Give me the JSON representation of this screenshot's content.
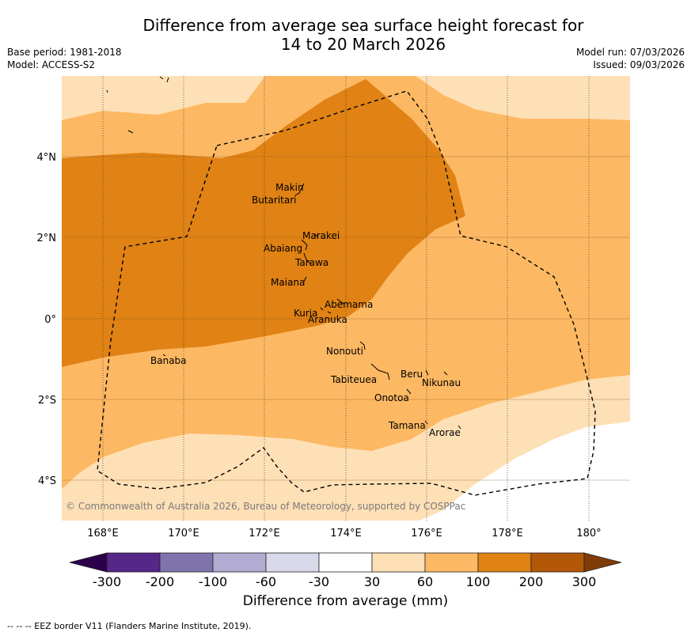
{
  "header": {
    "title_line1": "Difference from average sea surface height forecast for",
    "title_line2": "14 to 20 March 2026",
    "base_period": "Base period: 1981-2018",
    "model": "Model: ACCESS-S2",
    "model_run": "Model run: 07/03/2026",
    "issued": "Issued: 09/03/2026"
  },
  "map": {
    "lat_labels": [
      "4°N",
      "2°N",
      "0°",
      "2°S",
      "4°S"
    ],
    "lon_labels": [
      "168°E",
      "170°E",
      "172°E",
      "174°E",
      "176°E",
      "178°E",
      "180°"
    ],
    "copyright": "© Commonwealth of Australia 2026, Bureau of Meteorology, supported by COSPPac",
    "islands": [
      {
        "name": "Makin"
      },
      {
        "name": "Butaritari"
      },
      {
        "name": "Marakei"
      },
      {
        "name": "Abaiang"
      },
      {
        "name": "Tarawa"
      },
      {
        "name": "Maiana"
      },
      {
        "name": "Abemama"
      },
      {
        "name": "Kuria"
      },
      {
        "name": "Aranuka"
      },
      {
        "name": "Nonouti"
      },
      {
        "name": "Banaba"
      },
      {
        "name": "Tabiteuea"
      },
      {
        "name": "Beru"
      },
      {
        "name": "Nikunau"
      },
      {
        "name": "Onotoa"
      },
      {
        "name": "Tamana"
      },
      {
        "name": "Arorae"
      }
    ]
  },
  "colorbar": {
    "title": "Difference from average (mm)",
    "ticks": [
      "-300",
      "-200",
      "-100",
      "-60",
      "-30",
      "30",
      "60",
      "100",
      "200",
      "300"
    ],
    "colors": [
      "#2d004b",
      "#542788",
      "#8073ac",
      "#b2abd2",
      "#d8daeb",
      "#ffffff",
      "#fee0b6",
      "#fdb863",
      "#e08214",
      "#b35806",
      "#7f3b08"
    ]
  },
  "footnote": "--  --  -- EEZ border V11 (Flanders Marine Institute, 2019)."
}
